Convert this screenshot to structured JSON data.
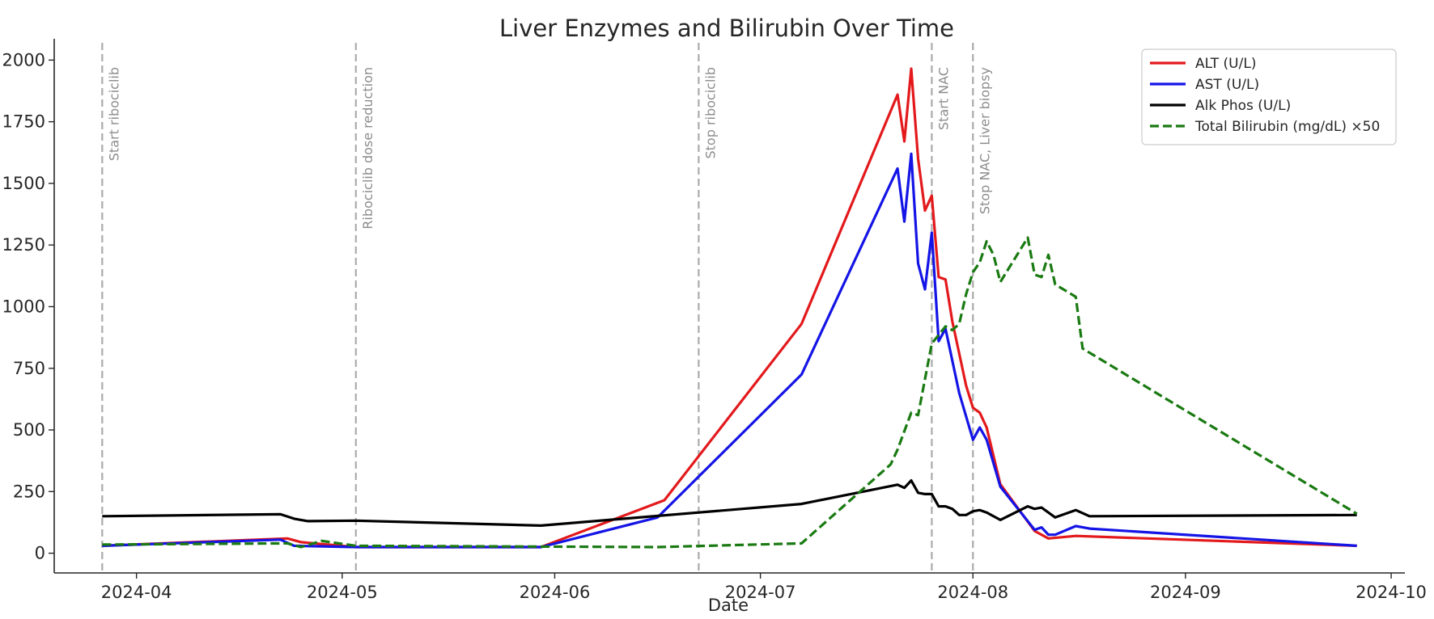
{
  "chart_data": {
    "type": "line",
    "title": "Liver Enzymes and Bilirubin Over Time",
    "xlabel": "Date",
    "ylabel": "",
    "xlim": [
      "2024-03-20",
      "2024-10-03"
    ],
    "ylim": [
      -80,
      2070
    ],
    "grid": false,
    "legend_position": "top-right",
    "x_ticks": [
      "2024-04-01",
      "2024-05-01",
      "2024-06-01",
      "2024-07-01",
      "2024-08-01",
      "2024-09-01",
      "2024-10-01"
    ],
    "x_tick_labels": [
      "2024-04",
      "2024-05",
      "2024-06",
      "2024-07",
      "2024-08",
      "2024-09",
      "2024-10"
    ],
    "y_ticks": [
      0,
      250,
      500,
      750,
      1000,
      1250,
      1500,
      1750,
      2000
    ],
    "y_tick_labels": [
      "0",
      "250",
      "500",
      "750",
      "1000",
      "1250",
      "1500",
      "1750",
      "2000"
    ],
    "events": [
      {
        "date": "2024-03-27",
        "label": "Start ribociclib"
      },
      {
        "date": "2024-05-03",
        "label": "Ribociclib dose reduction"
      },
      {
        "date": "2024-06-22",
        "label": "Stop ribociclib"
      },
      {
        "date": "2024-07-26",
        "label": "Start NAC"
      },
      {
        "date": "2024-08-01",
        "label": "Stop NAC, Liver biopsy"
      }
    ],
    "series": [
      {
        "name": "ALT (U/L)",
        "color": "#e3191c",
        "dash": "solid",
        "x": [
          "2024-03-27",
          "2024-04-23",
          "2024-04-25",
          "2024-05-03",
          "2024-05-30",
          "2024-06-17",
          "2024-07-07",
          "2024-07-21",
          "2024-07-22",
          "2024-07-23",
          "2024-07-24",
          "2024-07-25",
          "2024-07-26",
          "2024-07-27",
          "2024-07-28",
          "2024-07-29",
          "2024-07-31",
          "2024-08-01",
          "2024-08-02",
          "2024-08-03",
          "2024-08-05",
          "2024-08-10",
          "2024-08-12",
          "2024-08-16",
          "2024-09-26"
        ],
        "values": [
          30,
          60,
          45,
          25,
          25,
          215,
          930,
          1860,
          1670,
          1965,
          1600,
          1390,
          1450,
          1120,
          1110,
          940,
          680,
          590,
          570,
          510,
          280,
          90,
          60,
          70,
          30
        ]
      },
      {
        "name": "AST (U/L)",
        "color": "#1414e6",
        "dash": "solid",
        "x": [
          "2024-03-27",
          "2024-04-22",
          "2024-04-24",
          "2024-05-03",
          "2024-05-30",
          "2024-06-16",
          "2024-07-07",
          "2024-07-21",
          "2024-07-22",
          "2024-07-23",
          "2024-07-24",
          "2024-07-25",
          "2024-07-26",
          "2024-07-27",
          "2024-07-28",
          "2024-07-30",
          "2024-08-01",
          "2024-08-02",
          "2024-08-03",
          "2024-08-05",
          "2024-08-10",
          "2024-08-11",
          "2024-08-12",
          "2024-08-13",
          "2024-08-16",
          "2024-08-18",
          "2024-09-26"
        ],
        "values": [
          30,
          55,
          30,
          25,
          25,
          145,
          725,
          1560,
          1345,
          1620,
          1175,
          1070,
          1300,
          860,
          910,
          650,
          460,
          510,
          460,
          270,
          95,
          105,
          75,
          75,
          110,
          100,
          30
        ]
      },
      {
        "name": "Alk Phos (U/L)",
        "color": "#000000",
        "dash": "solid",
        "x": [
          "2024-03-27",
          "2024-04-22",
          "2024-04-24",
          "2024-04-26",
          "2024-05-03",
          "2024-05-30",
          "2024-07-07",
          "2024-07-21",
          "2024-07-22",
          "2024-07-23",
          "2024-07-24",
          "2024-07-25",
          "2024-07-26",
          "2024-07-27",
          "2024-07-28",
          "2024-07-29",
          "2024-07-30",
          "2024-07-31",
          "2024-08-01",
          "2024-08-02",
          "2024-08-03",
          "2024-08-05",
          "2024-08-09",
          "2024-08-10",
          "2024-08-11",
          "2024-08-13",
          "2024-08-16",
          "2024-08-18",
          "2024-09-26"
        ],
        "values": [
          150,
          158,
          140,
          130,
          132,
          112,
          200,
          278,
          265,
          295,
          245,
          240,
          240,
          190,
          190,
          180,
          155,
          155,
          170,
          175,
          165,
          135,
          190,
          180,
          185,
          145,
          175,
          150,
          155
        ]
      },
      {
        "name": "Total Bilirubin (mg/dL) ×50",
        "color": "#1a7a12",
        "dash": "dashed",
        "x": [
          "2024-03-27",
          "2024-04-23",
          "2024-04-25",
          "2024-04-28",
          "2024-05-03",
          "2024-06-16",
          "2024-07-07",
          "2024-07-20",
          "2024-07-21",
          "2024-07-23",
          "2024-07-24",
          "2024-07-26",
          "2024-07-28",
          "2024-07-29",
          "2024-07-30",
          "2024-07-31",
          "2024-08-01",
          "2024-08-02",
          "2024-08-03",
          "2024-08-04",
          "2024-08-05",
          "2024-08-09",
          "2024-08-10",
          "2024-08-11",
          "2024-08-12",
          "2024-08-13",
          "2024-08-16",
          "2024-08-17",
          "2024-09-26"
        ],
        "values": [
          35,
          40,
          25,
          50,
          30,
          25,
          40,
          360,
          420,
          570,
          560,
          850,
          920,
          905,
          930,
          1050,
          1140,
          1180,
          1265,
          1210,
          1100,
          1280,
          1130,
          1120,
          1210,
          1090,
          1040,
          830,
          160
        ]
      }
    ]
  }
}
